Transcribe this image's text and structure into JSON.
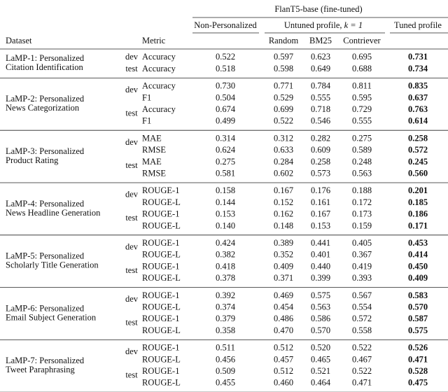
{
  "header": {
    "model": "FlanT5-base (fine-tuned)",
    "dataset": "Dataset",
    "metric": "Metric",
    "non_personalized": "Non-Personalized",
    "untuned": "Untuned profile,",
    "k": "k = 1",
    "tuned": "Tuned profile",
    "retrievers": [
      "Random",
      "BM25",
      "Contriever"
    ]
  },
  "table": {
    "groups": [
      {
        "name": [
          "LaMP-1: Personalized",
          "Citation Identification"
        ],
        "splits": [
          {
            "split": "dev",
            "rows": [
              {
                "metric": "Accuracy",
                "values": [
                  "0.522",
                  "0.597",
                  "0.623",
                  "0.695",
                  "0.731"
                ]
              }
            ]
          },
          {
            "split": "test",
            "rows": [
              {
                "metric": "Accuracy",
                "values": [
                  "0.518",
                  "0.598",
                  "0.649",
                  "0.688",
                  "0.734"
                ]
              }
            ]
          }
        ]
      },
      {
        "name": [
          "LaMP-2: Personalized",
          "News Categorization"
        ],
        "splits": [
          {
            "split": "dev",
            "rows": [
              {
                "metric": "Accuracy",
                "values": [
                  "0.730",
                  "0.771",
                  "0.784",
                  "0.811",
                  "0.835"
                ]
              },
              {
                "metric": "F1",
                "values": [
                  "0.504",
                  "0.529",
                  "0.555",
                  "0.595",
                  "0.637"
                ]
              }
            ]
          },
          {
            "split": "test",
            "rows": [
              {
                "metric": "Accuracy",
                "values": [
                  "0.674",
                  "0.699",
                  "0.718",
                  "0.729",
                  "0.763"
                ]
              },
              {
                "metric": "F1",
                "values": [
                  "0.499",
                  "0.522",
                  "0.546",
                  "0.555",
                  "0.614"
                ]
              }
            ]
          }
        ]
      },
      {
        "name": [
          "LaMP-3: Personalized",
          "Product Rating"
        ],
        "splits": [
          {
            "split": "dev",
            "rows": [
              {
                "metric": "MAE",
                "values": [
                  "0.314",
                  "0.312",
                  "0.282",
                  "0.275",
                  "0.258"
                ]
              },
              {
                "metric": "RMSE",
                "values": [
                  "0.624",
                  "0.633",
                  "0.609",
                  "0.589",
                  "0.572"
                ]
              }
            ]
          },
          {
            "split": "test",
            "rows": [
              {
                "metric": "MAE",
                "values": [
                  "0.275",
                  "0.284",
                  "0.258",
                  "0.248",
                  "0.245"
                ]
              },
              {
                "metric": "RMSE",
                "values": [
                  "0.581",
                  "0.602",
                  "0.573",
                  "0.563",
                  "0.560"
                ]
              }
            ]
          }
        ]
      },
      {
        "name": [
          "LaMP-4: Personalized",
          "News Headline Generation"
        ],
        "splits": [
          {
            "split": "dev",
            "rows": [
              {
                "metric": "ROUGE-1",
                "values": [
                  "0.158",
                  "0.167",
                  "0.176",
                  "0.188",
                  "0.201"
                ]
              },
              {
                "metric": "ROUGE-L",
                "values": [
                  "0.144",
                  "0.152",
                  "0.161",
                  "0.172",
                  "0.185"
                ]
              }
            ]
          },
          {
            "split": "test",
            "rows": [
              {
                "metric": "ROUGE-1",
                "values": [
                  "0.153",
                  "0.162",
                  "0.167",
                  "0.173",
                  "0.186"
                ]
              },
              {
                "metric": "ROUGE-L",
                "values": [
                  "0.140",
                  "0.148",
                  "0.153",
                  "0.159",
                  "0.171"
                ]
              }
            ]
          }
        ]
      },
      {
        "name": [
          "LaMP-5: Personalized",
          "Scholarly Title Generation"
        ],
        "splits": [
          {
            "split": "dev",
            "rows": [
              {
                "metric": "ROUGE-1",
                "values": [
                  "0.424",
                  "0.389",
                  "0.441",
                  "0.405",
                  "0.453"
                ]
              },
              {
                "metric": "ROUGE-L",
                "values": [
                  "0.382",
                  "0.352",
                  "0.401",
                  "0.367",
                  "0.414"
                ]
              }
            ]
          },
          {
            "split": "test",
            "rows": [
              {
                "metric": "ROUGE-1",
                "values": [
                  "0.418",
                  "0.409",
                  "0.440",
                  "0.419",
                  "0.450"
                ]
              },
              {
                "metric": "ROUGE-L",
                "values": [
                  "0.378",
                  "0.371",
                  "0.399",
                  "0.393",
                  "0.409"
                ]
              }
            ]
          }
        ]
      },
      {
        "name": [
          "LaMP-6: Personalized",
          "Email Subject Generation"
        ],
        "splits": [
          {
            "split": "dev",
            "rows": [
              {
                "metric": "ROUGE-1",
                "values": [
                  "0.392",
                  "0.469",
                  "0.575",
                  "0.567",
                  "0.583"
                ]
              },
              {
                "metric": "ROUGE-L",
                "values": [
                  "0.374",
                  "0.454",
                  "0.563",
                  "0.554",
                  "0.570"
                ]
              }
            ]
          },
          {
            "split": "test",
            "rows": [
              {
                "metric": "ROUGE-1",
                "values": [
                  "0.379",
                  "0.486",
                  "0.586",
                  "0.572",
                  "0.587"
                ]
              },
              {
                "metric": "ROUGE-L",
                "values": [
                  "0.358",
                  "0.470",
                  "0.570",
                  "0.558",
                  "0.575"
                ]
              }
            ]
          }
        ]
      },
      {
        "name": [
          "LaMP-7: Personalized",
          "Tweet Paraphrasing"
        ],
        "splits": [
          {
            "split": "dev",
            "rows": [
              {
                "metric": "ROUGE-1",
                "values": [
                  "0.511",
                  "0.512",
                  "0.520",
                  "0.522",
                  "0.526"
                ]
              },
              {
                "metric": "ROUGE-L",
                "values": [
                  "0.456",
                  "0.457",
                  "0.465",
                  "0.467",
                  "0.471"
                ]
              }
            ]
          },
          {
            "split": "test",
            "rows": [
              {
                "metric": "ROUGE-1",
                "values": [
                  "0.509",
                  "0.512",
                  "0.521",
                  "0.522",
                  "0.528"
                ]
              },
              {
                "metric": "ROUGE-L",
                "values": [
                  "0.455",
                  "0.460",
                  "0.464",
                  "0.471",
                  "0.475"
                ]
              }
            ]
          }
        ]
      }
    ]
  }
}
